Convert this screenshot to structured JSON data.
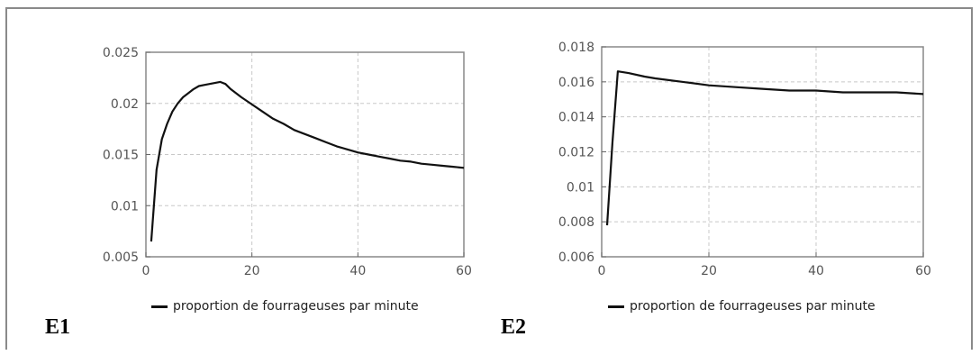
{
  "chart_data": [
    {
      "id": "E1",
      "type": "line",
      "panel_label": "E1",
      "xlim": [
        0,
        60
      ],
      "ylim": [
        0.005,
        0.025
      ],
      "xticks": [
        "0",
        "20",
        "40",
        "60"
      ],
      "yticks": [
        "0.005",
        "0.01",
        "0.015",
        "0.02",
        "0.025"
      ],
      "grid": true,
      "legend": "bottom",
      "series": [
        {
          "name": "proportion de fourrageuses par minute",
          "color": "#111111",
          "x": [
            1,
            2,
            3,
            4,
            5,
            6,
            7,
            8,
            9,
            10,
            11,
            12,
            13,
            14,
            15,
            16,
            18,
            20,
            22,
            24,
            26,
            28,
            30,
            32,
            34,
            36,
            38,
            40,
            42,
            44,
            46,
            48,
            50,
            52,
            54,
            56,
            58,
            60
          ],
          "y": [
            0.0065,
            0.0135,
            0.0165,
            0.018,
            0.0192,
            0.02,
            0.0206,
            0.021,
            0.0214,
            0.0217,
            0.0218,
            0.0219,
            0.022,
            0.0221,
            0.0219,
            0.0214,
            0.0206,
            0.0199,
            0.0192,
            0.0185,
            0.018,
            0.0174,
            0.017,
            0.0166,
            0.0162,
            0.0158,
            0.0155,
            0.0152,
            0.015,
            0.0148,
            0.0146,
            0.0144,
            0.0143,
            0.0141,
            0.014,
            0.0139,
            0.0138,
            0.0137
          ]
        }
      ]
    },
    {
      "id": "E2",
      "type": "line",
      "panel_label": "E2",
      "xlim": [
        0,
        60
      ],
      "ylim": [
        0.006,
        0.018
      ],
      "xticks": [
        "0",
        "20",
        "40",
        "60"
      ],
      "yticks": [
        "0.006",
        "0.008",
        "0.01",
        "0.012",
        "0.014",
        "0.016",
        "0.018"
      ],
      "grid": true,
      "legend": "bottom",
      "series": [
        {
          "name": "proportion de fourrageuses par minute",
          "color": "#111111",
          "x": [
            1,
            2,
            3,
            5,
            8,
            10,
            15,
            20,
            25,
            30,
            35,
            40,
            45,
            50,
            55,
            60
          ],
          "y": [
            0.0078,
            0.0125,
            0.0166,
            0.0165,
            0.0163,
            0.0162,
            0.016,
            0.0158,
            0.0157,
            0.0156,
            0.0155,
            0.0155,
            0.0154,
            0.0154,
            0.0154,
            0.0153
          ]
        }
      ]
    }
  ]
}
